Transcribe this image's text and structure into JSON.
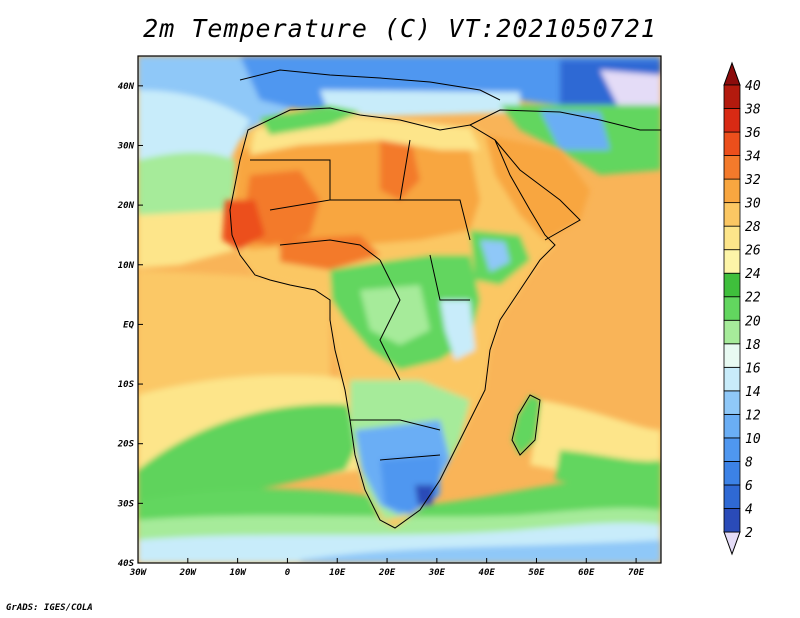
{
  "title": "2m Temperature (C) VT:2021050721",
  "credit": "GrADS: IGES/COLA",
  "map": {
    "region": "Africa",
    "projection": "lat-lon",
    "lon_range": [
      -30,
      75
    ],
    "lat_range": [
      -40,
      45
    ],
    "lon_ticks": [
      {
        "value": -30,
        "label": "30W"
      },
      {
        "value": -20,
        "label": "20W"
      },
      {
        "value": -10,
        "label": "10W"
      },
      {
        "value": 0,
        "label": "0"
      },
      {
        "value": 10,
        "label": "10E"
      },
      {
        "value": 20,
        "label": "20E"
      },
      {
        "value": 30,
        "label": "30E"
      },
      {
        "value": 40,
        "label": "40E"
      },
      {
        "value": 50,
        "label": "50E"
      },
      {
        "value": 60,
        "label": "60E"
      },
      {
        "value": 70,
        "label": "70E"
      }
    ],
    "lat_ticks": [
      {
        "value": 40,
        "label": "40N"
      },
      {
        "value": 30,
        "label": "30N"
      },
      {
        "value": 20,
        "label": "20N"
      },
      {
        "value": 10,
        "label": "10N"
      },
      {
        "value": 0,
        "label": "EQ"
      },
      {
        "value": -10,
        "label": "10S"
      },
      {
        "value": -20,
        "label": "20S"
      },
      {
        "value": -30,
        "label": "30S"
      },
      {
        "value": -40,
        "label": "40S"
      }
    ]
  },
  "colorbar": {
    "levels": [
      {
        "label": "2",
        "color": "#1e1e78"
      },
      {
        "label": "4",
        "color": "#2a4bb8"
      },
      {
        "label": "6",
        "color": "#2f69d4"
      },
      {
        "label": "8",
        "color": "#3c82e6"
      },
      {
        "label": "10",
        "color": "#4f97f0"
      },
      {
        "label": "12",
        "color": "#6aaef5"
      },
      {
        "label": "14",
        "color": "#8fc8f8"
      },
      {
        "label": "16",
        "color": "#c8ecfa"
      },
      {
        "label": "18",
        "color": "#e8faf2"
      },
      {
        "label": "20",
        "color": "#a6eb9a"
      },
      {
        "label": "22",
        "color": "#62d65f"
      },
      {
        "label": "24",
        "color": "#3fbf3c"
      },
      {
        "label": "26",
        "color": "#fdf5a8"
      },
      {
        "label": "28",
        "color": "#fde58a"
      },
      {
        "label": "30",
        "color": "#fbc763"
      },
      {
        "label": "32",
        "color": "#f8a640"
      },
      {
        "label": "34",
        "color": "#f37a2b"
      },
      {
        "label": "36",
        "color": "#ec4f1c"
      },
      {
        "label": "38",
        "color": "#d82a14"
      },
      {
        "label": "40",
        "color": "#b31a0e"
      }
    ],
    "under_color": "#e4dcf7",
    "over_color": "#8c0c0c"
  }
}
